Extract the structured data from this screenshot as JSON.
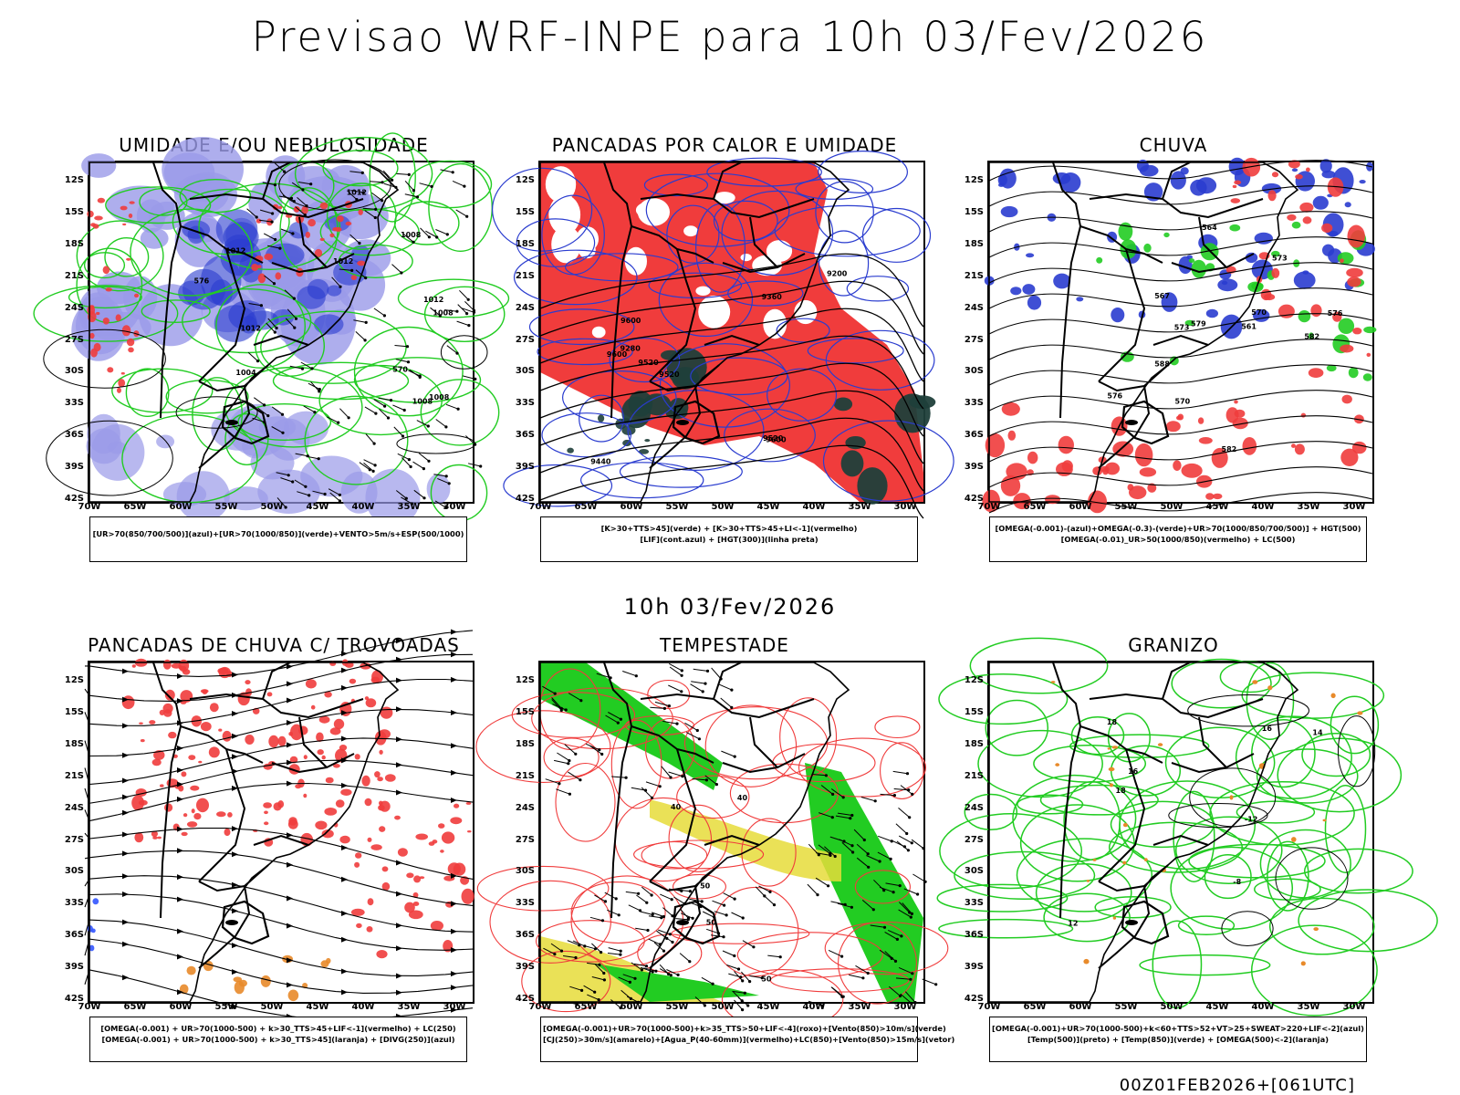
{
  "header": {
    "title": "Previsao WRF-INPE  para 10h 03/Fev/2026"
  },
  "middle_time": "10h 03/Fev/2026",
  "footer": "00Z01FEB2026+[061UTC]",
  "axes": {
    "lat_labels": [
      "12S",
      "15S",
      "18S",
      "21S",
      "24S",
      "27S",
      "30S",
      "33S",
      "36S",
      "39S",
      "42S"
    ],
    "lon_labels": [
      "70W",
      "65W",
      "60W",
      "55W",
      "50W",
      "45W",
      "40W",
      "35W",
      "30W"
    ]
  },
  "colors": {
    "red": "#f03c3c",
    "blue": "#2a3ccf",
    "green": "#22cc22",
    "lavender": "#9a9ae8",
    "darkteal": "#1f3f3a",
    "yellow": "#e6dc3a",
    "orange": "#e88a2a",
    "black": "#000000"
  },
  "panels": [
    {
      "title": "UMIDADE E/OU NEBULOSIDADE",
      "legend": [
        "[UR>70(850/700/500)](azul)+[UR>70(1000/850)](verde)+VENTO>5m/s+ESP(500/1000)"
      ],
      "contour_labels": [
        "1012",
        "1012",
        "1012",
        "1008",
        "1012",
        "1008",
        "1004",
        "1012",
        "1008",
        "1008",
        "576",
        "570"
      ]
    },
    {
      "title": "PANCADAS POR CALOR E UMIDADE",
      "legend": [
        "[K>30+TTS>45](verde) + [K>30+TTS>45+LI<-1](vermelho)",
        "[LIF](cont.azul) + [HGT(300)](linha preta)"
      ],
      "contour_labels": [
        "9600",
        "9520",
        "9520",
        "9600",
        "9600",
        "9520",
        "9440",
        "9360",
        "9280",
        "9200"
      ]
    },
    {
      "title": "CHUVA",
      "legend": [
        "[OMEGA(-0.001)-(azul)+OMEGA(-0.3)-(verde)+UR>70(1000/850/700/500)] + HGT(500)",
        "[OMEGA(-0.01)_UR>50(1000/850)(vermelho) + LC(500)"
      ],
      "contour_labels": [
        "582",
        "582",
        "579",
        "576",
        "576",
        "573",
        "573",
        "570",
        "567",
        "570",
        "564",
        "561",
        "588"
      ]
    },
    {
      "title": "PANCADAS DE CHUVA C/ TROVOADAS",
      "legend": [
        "[OMEGA(-0.001) + UR>70(1000-500) + k>30_TTS>45+LIF<-1](vermelho) + LC(250)",
        "[OMEGA(-0.001) + UR>70(1000-500) + k>30_TTS>45](laranja) + [DIVG(250)](azul)"
      ],
      "contour_labels": []
    },
    {
      "title": "TEMPESTADE",
      "legend": [
        "[OMEGA(-0.001)+UR>70(1000-500)+k>35_TTS>50+LIF<-4](roxo)+[Vento(850)>10m/s](verde)",
        "[CJ(250)>30m/s](amarelo)+[Agua_P(40-60mm)](vermelho)+LC(850)+[Vento(850)>15m/s](vetor)"
      ],
      "contour_labels": [
        "50",
        "40",
        "50",
        "50",
        "40"
      ]
    },
    {
      "title": "GRANIZO",
      "legend": [
        "[OMEGA(-0.001)+UR>70(1000-500)+k<60+TTS>52+VT>25+SWEAT>220+LIF<-2](azul)",
        "[Temp(500)](preto) + [Temp(850)](verde) + [OMEGA(500)<-2](laranja)"
      ],
      "contour_labels": [
        "-12",
        "-8",
        "16",
        "16",
        "18",
        "18",
        "14",
        "12"
      ]
    }
  ]
}
